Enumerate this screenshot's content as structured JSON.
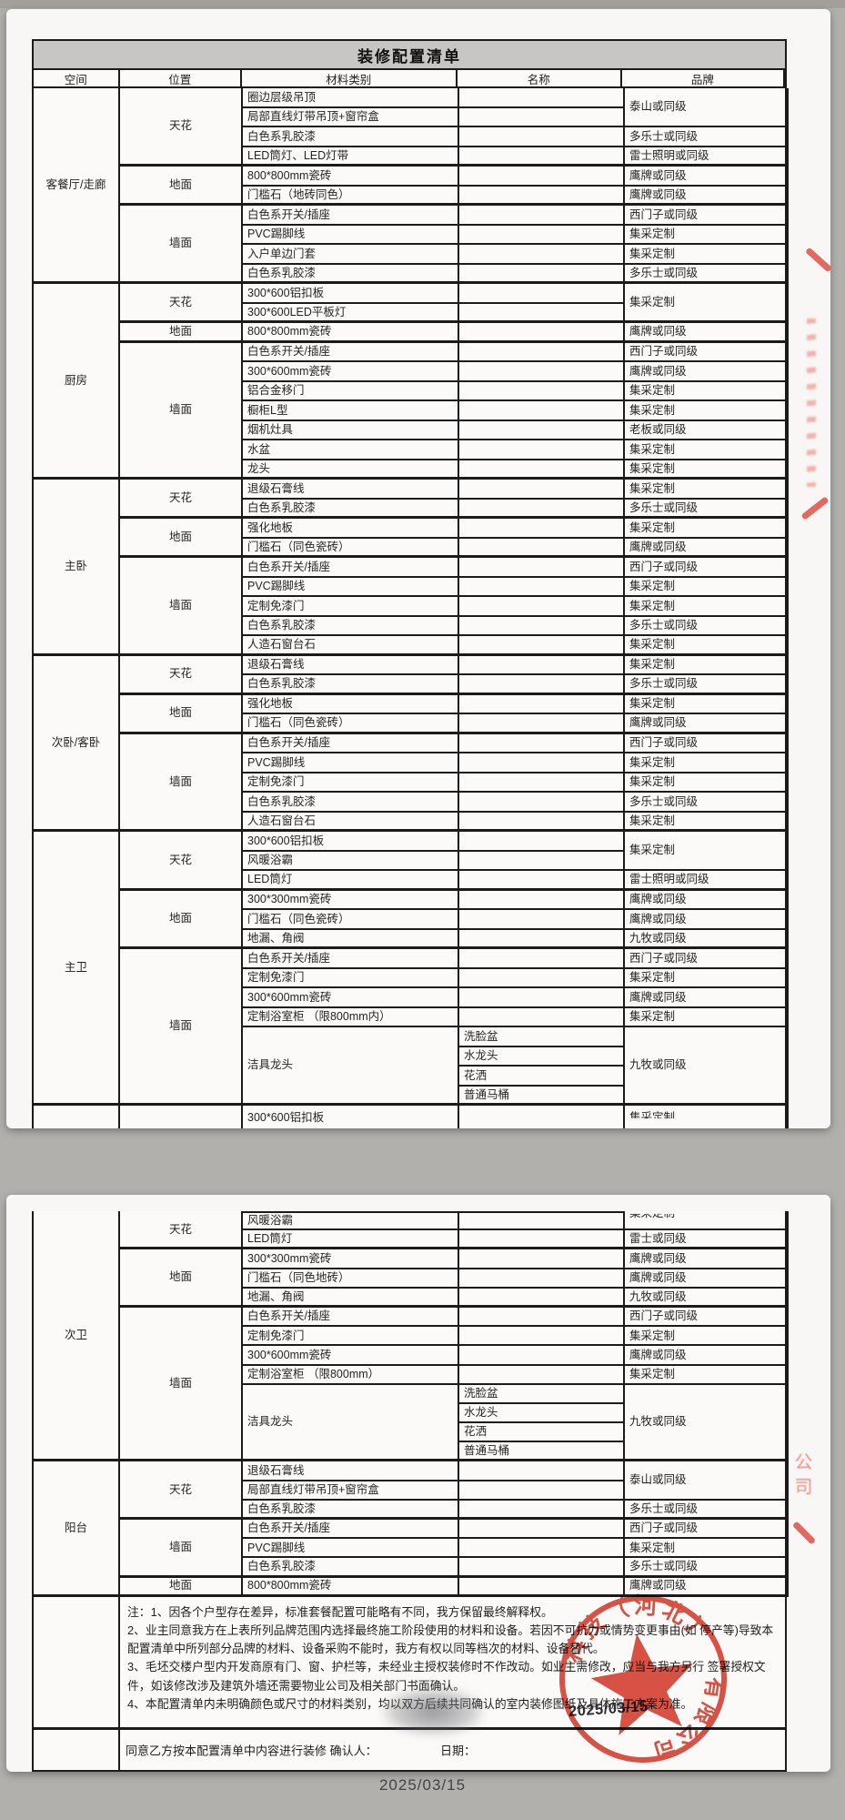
{
  "title": "装修配置清单",
  "columns": [
    "空间",
    "位置",
    "材料类别",
    "名称",
    "品牌"
  ],
  "pages": [
    {
      "sections": [
        {
          "space": "客餐厅/走廊",
          "groups": [
            {
              "pos": "天花",
              "rows": [
                {
                  "m": "圈边层级吊顶",
                  "b": "泰山或同级"
                },
                {
                  "m": "局部直线灯带吊顶+窗帘盒",
                  "b": null
                },
                {
                  "m": "白色系乳胶漆",
                  "b": "多乐士或同级"
                },
                {
                  "m": "LED筒灯、LED灯带",
                  "b": "雷士照明或同级"
                }
              ]
            },
            {
              "pos": "地面",
              "rows": [
                {
                  "m": "800*800mm瓷砖",
                  "b": "鹰牌或同级"
                },
                {
                  "m": "门槛石（地砖同色）",
                  "b": "鹰牌或同级"
                }
              ]
            },
            {
              "pos": "墙面",
              "rows": [
                {
                  "m": "白色系开关/插座",
                  "b": "西门子或同级"
                },
                {
                  "m": "PVC踢脚线",
                  "b": "集采定制"
                },
                {
                  "m": "入户单边门套",
                  "b": "集采定制"
                },
                {
                  "m": "白色系乳胶漆",
                  "b": "多乐士或同级"
                }
              ]
            }
          ]
        },
        {
          "space": "厨房",
          "groups": [
            {
              "pos": "天花",
              "rows": [
                {
                  "m": "300*600铝扣板",
                  "b": "集采定制"
                },
                {
                  "m": "300*600LED平板灯",
                  "b": null
                }
              ]
            },
            {
              "pos": "地面",
              "rows": [
                {
                  "m": "800*800mm瓷砖",
                  "b": "鹰牌或同级"
                }
              ]
            },
            {
              "pos": "墙面",
              "rows": [
                {
                  "m": "白色系开关/插座",
                  "b": "西门子或同级"
                },
                {
                  "m": "300*600mm瓷砖",
                  "b": "鹰牌或同级"
                },
                {
                  "m": "铝合金移门",
                  "b": "集采定制"
                },
                {
                  "m": "橱柜L型",
                  "b": "集采定制"
                },
                {
                  "m": "烟机灶具",
                  "b": "老板或同级"
                },
                {
                  "m": "水盆",
                  "b": "集采定制"
                },
                {
                  "m": "龙头",
                  "b": "集采定制"
                }
              ]
            }
          ]
        },
        {
          "space": "主卧",
          "groups": [
            {
              "pos": "天花",
              "rows": [
                {
                  "m": "退级石膏线",
                  "b": "集采定制"
                },
                {
                  "m": "白色系乳胶漆",
                  "b": "多乐士或同级"
                }
              ]
            },
            {
              "pos": "地面",
              "rows": [
                {
                  "m": "强化地板",
                  "b": "集采定制"
                },
                {
                  "m": "门槛石（同色瓷砖）",
                  "b": "鹰牌或同级"
                }
              ]
            },
            {
              "pos": "墙面",
              "rows": [
                {
                  "m": "白色系开关/插座",
                  "b": "西门子或同级"
                },
                {
                  "m": "PVC踢脚线",
                  "b": "集采定制"
                },
                {
                  "m": "定制免漆门",
                  "b": "集采定制"
                },
                {
                  "m": "白色系乳胶漆",
                  "b": "多乐士或同级"
                },
                {
                  "m": "人造石窗台石",
                  "b": "集采定制"
                }
              ]
            }
          ]
        },
        {
          "space": "次卧/客卧",
          "groups": [
            {
              "pos": "天花",
              "rows": [
                {
                  "m": "退级石膏线",
                  "b": "集采定制"
                },
                {
                  "m": "白色系乳胶漆",
                  "b": "多乐士或同级"
                }
              ]
            },
            {
              "pos": "地面",
              "rows": [
                {
                  "m": "强化地板",
                  "b": "集采定制"
                },
                {
                  "m": "门槛石（同色瓷砖）",
                  "b": "鹰牌或同级"
                }
              ]
            },
            {
              "pos": "墙面",
              "rows": [
                {
                  "m": "白色系开关/插座",
                  "b": "西门子或同级"
                },
                {
                  "m": "PVC踢脚线",
                  "b": "集采定制"
                },
                {
                  "m": "定制免漆门",
                  "b": "集采定制"
                },
                {
                  "m": "白色系乳胶漆",
                  "b": "多乐士或同级"
                },
                {
                  "m": "人造石窗台石",
                  "b": "集采定制"
                }
              ]
            }
          ]
        },
        {
          "space": "主卫",
          "groups": [
            {
              "pos": "天花",
              "rows": [
                {
                  "m": "300*600铝扣板",
                  "b": "集采定制"
                },
                {
                  "m": "风暖浴霸",
                  "b": null
                },
                {
                  "m": "LED筒灯",
                  "b": "雷士照明或同级"
                }
              ]
            },
            {
              "pos": "地面",
              "rows": [
                {
                  "m": "300*300mm瓷砖",
                  "b": "鹰牌或同级"
                },
                {
                  "m": "门槛石（同色瓷砖）",
                  "b": "鹰牌或同级"
                },
                {
                  "m": "地漏、角阀",
                  "b": "九牧或同级"
                }
              ]
            },
            {
              "pos": "墙面",
              "rows": [
                {
                  "m": "白色系开关/插座",
                  "b": "西门子或同级"
                },
                {
                  "m": "定制免漆门",
                  "b": "集采定制"
                },
                {
                  "m": "300*600mm瓷砖",
                  "b": "鹰牌或同级"
                },
                {
                  "m": "定制浴室柜 （限800mm内）",
                  "b": "集采定制"
                },
                {
                  "m": "洁具龙头",
                  "names": [
                    "洗脸盆",
                    "水龙头",
                    "花洒",
                    "普通马桶"
                  ],
                  "b": "九牧或同级"
                }
              ]
            }
          ]
        },
        {
          "space": "",
          "groups": [
            {
              "pos": "",
              "rows": [
                {
                  "m": "300*600铝扣板",
                  "b": "集采定制",
                  "cut": "bottom"
                }
              ]
            }
          ]
        }
      ]
    },
    {
      "sections": [
        {
          "space": "次卫",
          "groups": [
            {
              "pos": "天花",
              "rows": [
                {
                  "m": "风暖浴霸",
                  "b": "集采定制",
                  "cut": "top"
                },
                {
                  "m": "LED筒灯",
                  "b": "雷士或同级"
                }
              ]
            },
            {
              "pos": "地面",
              "rows": [
                {
                  "m": "300*300mm瓷砖",
                  "b": "鹰牌或同级"
                },
                {
                  "m": "门槛石（同色地砖）",
                  "b": "鹰牌或同级"
                },
                {
                  "m": "地漏、角阀",
                  "b": "九牧或同级"
                }
              ]
            },
            {
              "pos": "墙面",
              "rows": [
                {
                  "m": "白色系开关/插座",
                  "b": "西门子或同级"
                },
                {
                  "m": "定制免漆门",
                  "b": "集采定制"
                },
                {
                  "m": "300*600mm瓷砖",
                  "b": "鹰牌或同级"
                },
                {
                  "m": "定制浴室柜 （限800mm）",
                  "b": "集采定制"
                },
                {
                  "m": "洁具龙头",
                  "names": [
                    "洗脸盆",
                    "水龙头",
                    "花洒",
                    "普通马桶"
                  ],
                  "b": "九牧或同级"
                }
              ]
            }
          ]
        },
        {
          "space": "阳台",
          "groups": [
            {
              "pos": "天花",
              "rows": [
                {
                  "m": "退级石膏线",
                  "b": "泰山或同级"
                },
                {
                  "m": "局部直线灯带吊顶+窗帘盒",
                  "b": null
                },
                {
                  "m": "白色系乳胶漆",
                  "b": "多乐士或同级"
                }
              ]
            },
            {
              "pos": "墙面",
              "rows": [
                {
                  "m": "白色系开关/插座",
                  "b": "西门子或同级"
                },
                {
                  "m": "PVC踢脚线",
                  "b": "集采定制"
                },
                {
                  "m": "白色系乳胶漆",
                  "b": "多乐士或同级"
                }
              ]
            },
            {
              "pos": "地面",
              "rows": [
                {
                  "m": "800*800mm瓷砖",
                  "b": "鹰牌或同级"
                }
              ]
            }
          ]
        }
      ]
    }
  ],
  "notes": [
    "注：1、因各个户型存在差异，标准套餐配置可能略有不同，我方保留最终解释权。",
    "2、业主同意我方在上表所列品牌范围内选择最终施工阶段使用的材料和设备。若因不可抗力或情势变更事由(如 停产等)导致本配置清单中所列部分品牌的材料、设备采购不能时，我方有权以同等档次的材料、设备替代。",
    "3、毛坯交楼户型内开发商原有门、窗、护栏等，未经业主授权装修时不作改动。如业主需修改，应当与我方另行 签署授权文件，如该修改涉及建筑外墙还需要物业公司及相关部门书面确认。",
    "4、本配置清单内未明确颜色或尺寸的材料类别，均以双方后续共同确认的室内装修图纸及具体施工方案为准。"
  ],
  "signature": {
    "label": "同意乙方按本配置清单中内容进行装修 确认人：",
    "date_label": "日期：",
    "handwritten_date": "2025/03/15"
  },
  "stamp": {
    "text_top": "科技（河北）",
    "text_bottom": "有限公司"
  },
  "edge_marks": {
    "page2_vertical_text": "公司"
  },
  "footer_date": "2025/03/15",
  "colors": {
    "border": "#1b1b1b",
    "title_bg": "#c7c6c4",
    "page_bg": "#f8f7f5",
    "body_bg": "#b2b0ad",
    "stamp_red": "#d63a2c"
  }
}
